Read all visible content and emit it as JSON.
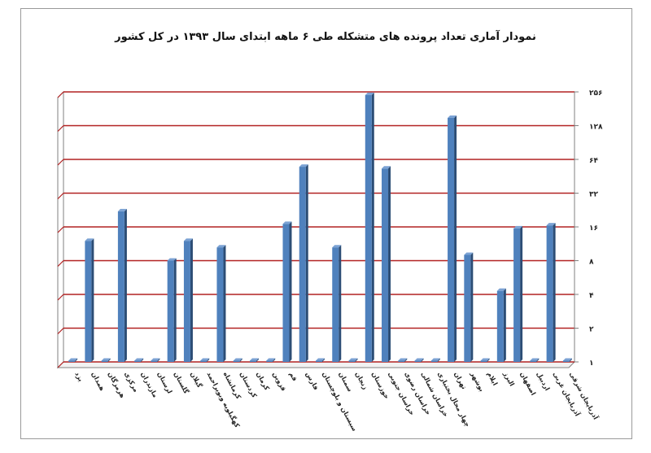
{
  "chart_data": {
    "type": "bar",
    "title": "نمودار آماری تعداد پرونده های متشکله طی ۶ ماهه ابتدای سال ۱۳۹۳ در کل کشور",
    "xlabel": "",
    "ylabel": "",
    "scale": "log2",
    "ylim": [
      1,
      256
    ],
    "yticks": [
      1,
      2,
      4,
      8,
      16,
      32,
      64,
      128,
      256
    ],
    "ytick_labels": [
      "۱",
      "۲",
      "۴",
      "۸",
      "۱۶",
      "۳۲",
      "۶۴",
      "۱۲۸",
      "۲۵۶"
    ],
    "y_axis_position": "right",
    "grid": true,
    "legend": "none",
    "colors": {
      "bar": "#4f81bd",
      "bar_dark": "#2c4d75",
      "grid": "#b22222",
      "axis": "#808080",
      "frame": "#9a9a9a"
    },
    "categories": [
      "یزد",
      "همدان",
      "هرمزگان",
      "مرکزی",
      "مازندران",
      "لرستان",
      "گلستان",
      "گیلان",
      "کهگیلویه وبویراحمد",
      "کرمانشاه",
      "کردستان",
      "کرمان",
      "قزوین",
      "قم",
      "فارس",
      "سیستان و بلوچستان",
      "سمنان",
      "زنجان",
      "خوزستان",
      "خراسان جنوبی",
      "خراسان رضوی",
      "خراسان شمالی",
      "چهار محال بختیاری",
      "تهران",
      "بوشهر",
      "ایلام",
      "البرز",
      "اصفهان",
      "اردبیل",
      "آذربایجان غربی",
      "آذربایجان شرقی"
    ],
    "values": [
      1,
      12,
      1,
      22,
      1,
      1,
      8,
      12,
      1,
      10.5,
      1,
      1,
      1,
      17,
      55,
      1,
      10.5,
      1,
      240,
      53,
      1,
      1,
      1,
      150,
      9,
      1,
      4.3,
      15.5,
      1,
      16.5,
      1
    ]
  }
}
